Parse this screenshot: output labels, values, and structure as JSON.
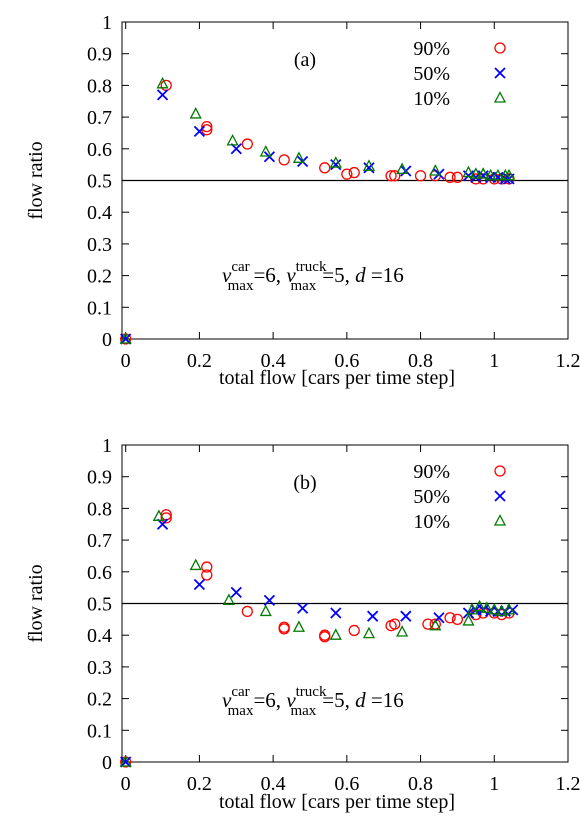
{
  "colors": {
    "90%": "#ff0000",
    "50%": "#0000ff",
    "10%": "#007a00",
    "axis": "#000000"
  },
  "chart_data": [
    {
      "type": "scatter",
      "panel_label": "(a)",
      "xlabel": "total flow [cars per time step]",
      "ylabel": "flow ratio",
      "xlim": [
        -0.01,
        1.2
      ],
      "ylim": [
        0,
        1
      ],
      "xticks": [
        "0",
        "0.2",
        "0.4",
        "0.6",
        "0.8",
        "1",
        "1.2"
      ],
      "yticks": [
        "0",
        "0.1",
        "0.2",
        "0.3",
        "0.4",
        "0.5",
        "0.6",
        "0.7",
        "0.8",
        "0.9",
        "1"
      ],
      "reference_line_y": 0.5,
      "annotation": {
        "v1": "v",
        "sup1": "car",
        "sub1": "max",
        "eq1": "=6, ",
        "v2": "v",
        "sup2": "truck",
        "sub2": "max",
        "eq2": "=5, ",
        "d": "d",
        "eq3": " =16"
      },
      "legend_position": "top-right",
      "series": [
        {
          "name": "90%",
          "marker": "circle",
          "points": [
            [
              0,
              0
            ],
            [
              0.11,
              0.8
            ],
            [
              0.22,
              0.67
            ],
            [
              0.22,
              0.66
            ],
            [
              0.33,
              0.615
            ],
            [
              0.43,
              0.565
            ],
            [
              0.54,
              0.54
            ],
            [
              0.6,
              0.52
            ],
            [
              0.62,
              0.525
            ],
            [
              0.72,
              0.515
            ],
            [
              0.73,
              0.515
            ],
            [
              0.8,
              0.515
            ],
            [
              0.84,
              0.515
            ],
            [
              0.88,
              0.51
            ],
            [
              0.9,
              0.51
            ],
            [
              0.95,
              0.505
            ],
            [
              0.97,
              0.505
            ],
            [
              1.0,
              0.505
            ],
            [
              1.02,
              0.505
            ],
            [
              1.04,
              0.505
            ]
          ]
        },
        {
          "name": "50%",
          "marker": "cross",
          "points": [
            [
              0,
              0
            ],
            [
              0.1,
              0.77
            ],
            [
              0.2,
              0.655
            ],
            [
              0.3,
              0.6
            ],
            [
              0.39,
              0.575
            ],
            [
              0.48,
              0.56
            ],
            [
              0.57,
              0.55
            ],
            [
              0.66,
              0.54
            ],
            [
              0.76,
              0.53
            ],
            [
              0.85,
              0.52
            ],
            [
              0.93,
              0.515
            ],
            [
              0.95,
              0.51
            ],
            [
              0.97,
              0.515
            ],
            [
              0.99,
              0.51
            ],
            [
              1.01,
              0.51
            ],
            [
              1.03,
              0.505
            ],
            [
              1.04,
              0.505
            ]
          ]
        },
        {
          "name": "10%",
          "marker": "triangle",
          "points": [
            [
              0,
              0
            ],
            [
              0.1,
              0.805
            ],
            [
              0.19,
              0.71
            ],
            [
              0.29,
              0.625
            ],
            [
              0.38,
              0.59
            ],
            [
              0.47,
              0.57
            ],
            [
              0.57,
              0.555
            ],
            [
              0.66,
              0.545
            ],
            [
              0.75,
              0.535
            ],
            [
              0.84,
              0.53
            ],
            [
              0.93,
              0.525
            ],
            [
              0.95,
              0.52
            ],
            [
              0.97,
              0.52
            ],
            [
              0.99,
              0.515
            ],
            [
              1.01,
              0.515
            ],
            [
              1.03,
              0.515
            ],
            [
              1.04,
              0.515
            ]
          ]
        }
      ]
    },
    {
      "type": "scatter",
      "panel_label": "(b)",
      "xlabel": "total flow [cars per time step]",
      "ylabel": "flow ratio",
      "xlim": [
        -0.01,
        1.2
      ],
      "ylim": [
        0,
        1
      ],
      "xticks": [
        "0",
        "0.2",
        "0.4",
        "0.6",
        "0.8",
        "1",
        "1.2"
      ],
      "yticks": [
        "0",
        "0.1",
        "0.2",
        "0.3",
        "0.4",
        "0.5",
        "0.6",
        "0.7",
        "0.8",
        "0.9",
        "1"
      ],
      "reference_line_y": 0.5,
      "annotation": {
        "v1": "v",
        "sup1": "car",
        "sub1": "max",
        "eq1": "=6, ",
        "v2": "v",
        "sup2": "truck",
        "sub2": "max",
        "eq2": "=5, ",
        "d": "d",
        "eq3": " =16"
      },
      "legend_position": "top-right",
      "series": [
        {
          "name": "90%",
          "marker": "circle",
          "points": [
            [
              0,
              0
            ],
            [
              0.11,
              0.78
            ],
            [
              0.11,
              0.77
            ],
            [
              0.22,
              0.615
            ],
            [
              0.22,
              0.59
            ],
            [
              0.33,
              0.475
            ],
            [
              0.43,
              0.425
            ],
            [
              0.43,
              0.42
            ],
            [
              0.54,
              0.4
            ],
            [
              0.54,
              0.395
            ],
            [
              0.62,
              0.415
            ],
            [
              0.72,
              0.43
            ],
            [
              0.73,
              0.435
            ],
            [
              0.82,
              0.435
            ],
            [
              0.84,
              0.435
            ],
            [
              0.88,
              0.455
            ],
            [
              0.9,
              0.45
            ],
            [
              0.95,
              0.465
            ],
            [
              0.97,
              0.47
            ],
            [
              1.0,
              0.47
            ],
            [
              1.02,
              0.465
            ],
            [
              1.04,
              0.47
            ]
          ]
        },
        {
          "name": "50%",
          "marker": "cross",
          "points": [
            [
              0,
              0
            ],
            [
              0.1,
              0.75
            ],
            [
              0.2,
              0.56
            ],
            [
              0.3,
              0.535
            ],
            [
              0.39,
              0.51
            ],
            [
              0.48,
              0.485
            ],
            [
              0.57,
              0.47
            ],
            [
              0.67,
              0.46
            ],
            [
              0.76,
              0.46
            ],
            [
              0.85,
              0.455
            ],
            [
              0.93,
              0.47
            ],
            [
              0.95,
              0.48
            ],
            [
              0.97,
              0.48
            ],
            [
              0.99,
              0.475
            ],
            [
              1.01,
              0.475
            ],
            [
              1.03,
              0.475
            ],
            [
              1.05,
              0.48
            ]
          ]
        },
        {
          "name": "10%",
          "marker": "triangle",
          "points": [
            [
              0,
              0
            ],
            [
              0.09,
              0.775
            ],
            [
              0.19,
              0.62
            ],
            [
              0.28,
              0.51
            ],
            [
              0.38,
              0.475
            ],
            [
              0.47,
              0.425
            ],
            [
              0.57,
              0.4
            ],
            [
              0.66,
              0.405
            ],
            [
              0.75,
              0.41
            ],
            [
              0.84,
              0.43
            ],
            [
              0.93,
              0.445
            ],
            [
              0.94,
              0.48
            ],
            [
              0.96,
              0.49
            ],
            [
              0.98,
              0.485
            ],
            [
              1.0,
              0.48
            ],
            [
              1.02,
              0.475
            ],
            [
              1.04,
              0.48
            ]
          ]
        }
      ]
    }
  ]
}
